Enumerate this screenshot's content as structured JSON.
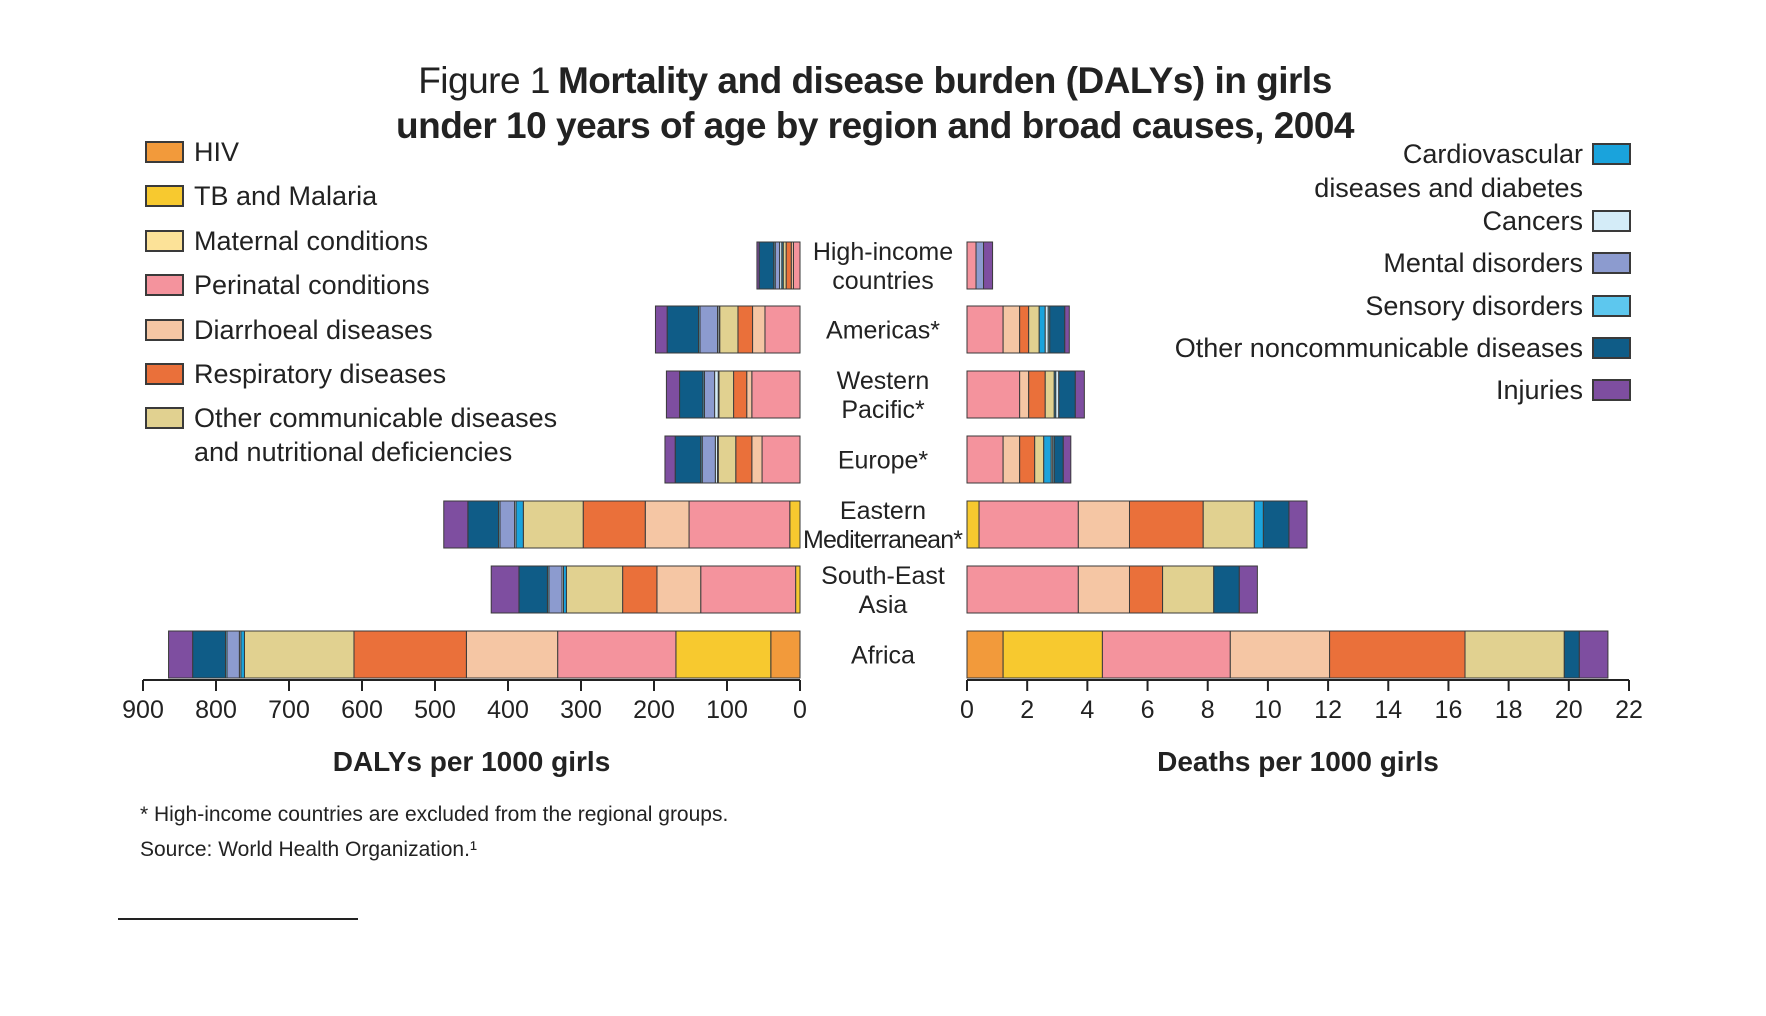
{
  "title": {
    "lead": "Figure 1",
    "main_line1": "Mortality and disease burden (DALYs) in girls",
    "main_line2": "under 10 years of age by region and broad causes, 2004"
  },
  "footnote": "* High-income countries are excluded from the regional groups.",
  "source": "Source: World Health Organization.¹",
  "chart_data": {
    "type": "bar",
    "orientation": "horizontal",
    "stacked": true,
    "categories": [
      [
        "High-income",
        "countries"
      ],
      [
        "Americas*"
      ],
      [
        "Western",
        "Pacific*"
      ],
      [
        "Europe*"
      ],
      [
        "Eastern",
        "Mediterranean*"
      ],
      [
        "South-East",
        "Asia"
      ],
      [
        "Africa"
      ]
    ],
    "causes": [
      {
        "name": "HIV",
        "color": "#F29A3B"
      },
      {
        "name": "TB and Malaria",
        "color": "#F7C92F"
      },
      {
        "name": "Maternal conditions",
        "color": "#FCE298"
      },
      {
        "name": "Perinatal conditions",
        "color": "#F4939D"
      },
      {
        "name": "Diarrhoeal diseases",
        "color": "#F5C6A4"
      },
      {
        "name": "Respiratory diseases",
        "color": "#EA703A"
      },
      {
        "name": "Other communicable diseases and nutritional deficiencies",
        "color": "#E1D190"
      },
      {
        "name": "Cardiovascular diseases and diabetes",
        "color": "#1AA3DC"
      },
      {
        "name": "Cancers",
        "color": "#D4ECF8"
      },
      {
        "name": "Mental disorders",
        "color": "#8C9BCF"
      },
      {
        "name": "Sensory disorders",
        "color": "#5DC7EE"
      },
      {
        "name": "Other noncommunicable diseases",
        "color": "#0F5C87"
      },
      {
        "name": "Injuries",
        "color": "#7E4EA0"
      }
    ],
    "legend_left": [
      {
        "label": "HIV",
        "cause": 0
      },
      {
        "label": "TB and Malaria",
        "cause": 1
      },
      {
        "label": "Maternal conditions",
        "cause": 2
      },
      {
        "label": "Perinatal conditions",
        "cause": 3
      },
      {
        "label": "Diarrhoeal diseases",
        "cause": 4
      },
      {
        "label": "Respiratory diseases",
        "cause": 5
      },
      {
        "label": "Other communicable diseases",
        "label2": "and nutritional deficiencies",
        "cause": 6
      }
    ],
    "legend_right": [
      {
        "label": "Cardiovascular",
        "label2": "diseases and diabetes",
        "cause": 7
      },
      {
        "label": "Cancers",
        "cause": 8
      },
      {
        "label": "Mental disorders",
        "cause": 9
      },
      {
        "label": "Sensory disorders",
        "cause": 10
      },
      {
        "label": "Other noncommunicable diseases",
        "cause": 11
      },
      {
        "label": "Injuries",
        "cause": 12
      }
    ],
    "dalys": {
      "xlabel": "DALYs per 1000 girls",
      "xlim": [
        0,
        900
      ],
      "ticks": [
        900,
        800,
        700,
        600,
        500,
        400,
        300,
        200,
        100,
        0
      ],
      "direction": "right-to-left",
      "values": [
        [
          0,
          0,
          0,
          9,
          3,
          7,
          4,
          2,
          3,
          6,
          2,
          20,
          3
        ],
        [
          0,
          0,
          0,
          48,
          17,
          20,
          25,
          1,
          2,
          24,
          2,
          43,
          16
        ],
        [
          0,
          0,
          0,
          66,
          7,
          18,
          20,
          1,
          5,
          14,
          2,
          32,
          18
        ],
        [
          0,
          0,
          0,
          52,
          14,
          22,
          24,
          1,
          3,
          18,
          2,
          35,
          14
        ],
        [
          0,
          14,
          0,
          138,
          60,
          85,
          82,
          10,
          2,
          20,
          2,
          42,
          33
        ],
        [
          0,
          6,
          0,
          130,
          60,
          47,
          77,
          4,
          2,
          18,
          2,
          39,
          38
        ],
        [
          40,
          130,
          0,
          162,
          125,
          154,
          150,
          5,
          2,
          17,
          2,
          45,
          33
        ]
      ]
    },
    "deaths": {
      "xlabel": "Deaths per 1000 girls",
      "xlim": [
        0,
        22
      ],
      "ticks": [
        0,
        2,
        4,
        6,
        8,
        10,
        12,
        14,
        16,
        18,
        20,
        22
      ],
      "direction": "left-to-right",
      "values": [
        [
          0,
          0,
          0,
          0.3,
          0,
          0,
          0,
          0,
          0,
          0.25,
          0,
          0,
          0.3
        ],
        [
          0,
          0,
          0,
          1.2,
          0.55,
          0.3,
          0.35,
          0.2,
          0.1,
          0,
          0.05,
          0.5,
          0.15
        ],
        [
          0,
          0,
          0,
          1.75,
          0.3,
          0.55,
          0.3,
          0.05,
          0.1,
          0,
          0,
          0.55,
          0.3
        ],
        [
          0,
          0,
          0,
          1.2,
          0.55,
          0.5,
          0.3,
          0.25,
          0.05,
          0,
          0.05,
          0.3,
          0.25
        ],
        [
          0,
          0.4,
          0,
          3.3,
          1.7,
          2.45,
          1.7,
          0.3,
          0,
          0,
          0,
          0.85,
          0.6
        ],
        [
          0,
          0,
          0,
          3.7,
          1.7,
          1.1,
          1.7,
          0,
          0,
          0,
          0,
          0.85,
          0.6
        ],
        [
          1.2,
          3.3,
          0,
          4.25,
          3.3,
          4.5,
          3.3,
          0,
          0,
          0,
          0,
          0.5,
          0.95
        ]
      ]
    }
  }
}
